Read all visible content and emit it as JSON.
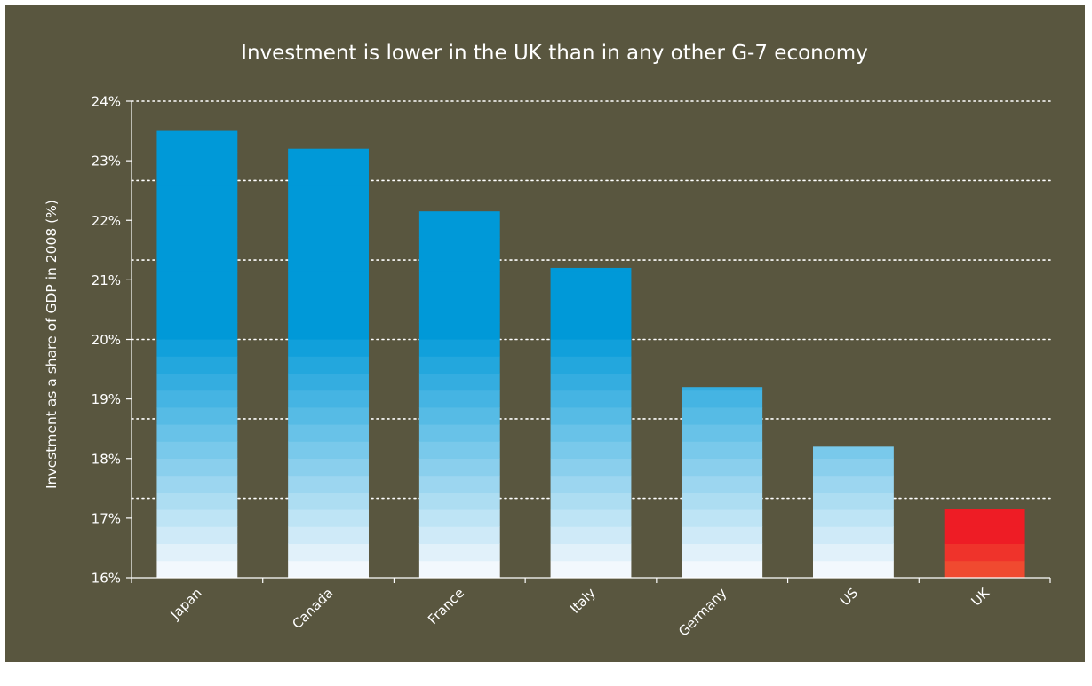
{
  "chart_data": {
    "type": "bar",
    "title": "Investment is lower in the UK than in any other G-7 economy",
    "xlabel": "",
    "ylabel": "Investment as a share of GDP in 2008 (%)",
    "categories": [
      "Japan",
      "Canada",
      "France",
      "Italy",
      "Germany",
      "US",
      "UK"
    ],
    "values": [
      23.5,
      23.2,
      22.15,
      21.2,
      19.2,
      18.2,
      17.15
    ],
    "ylim": [
      16,
      24
    ],
    "yticks": [
      16,
      17,
      18,
      19,
      20,
      21,
      22,
      23,
      24
    ],
    "ytick_labels": [
      "16%",
      "17%",
      "18%",
      "19%",
      "20%",
      "21%",
      "22%",
      "23%",
      "24%"
    ],
    "gridlines": [
      24,
      22.667,
      21.333,
      20,
      18.667,
      17.333
    ],
    "grid": true,
    "legend": "none"
  },
  "colors": {
    "background": "#59563f",
    "axis": "#ffffff",
    "grid": "#ffffff",
    "text": "#ffffff",
    "bar_dark": "#0099d8",
    "bar_light": "#f2f8fd",
    "highlight_dark": "#ee1c25",
    "highlight_light": "#f04a30",
    "highlight_category": "UK"
  }
}
